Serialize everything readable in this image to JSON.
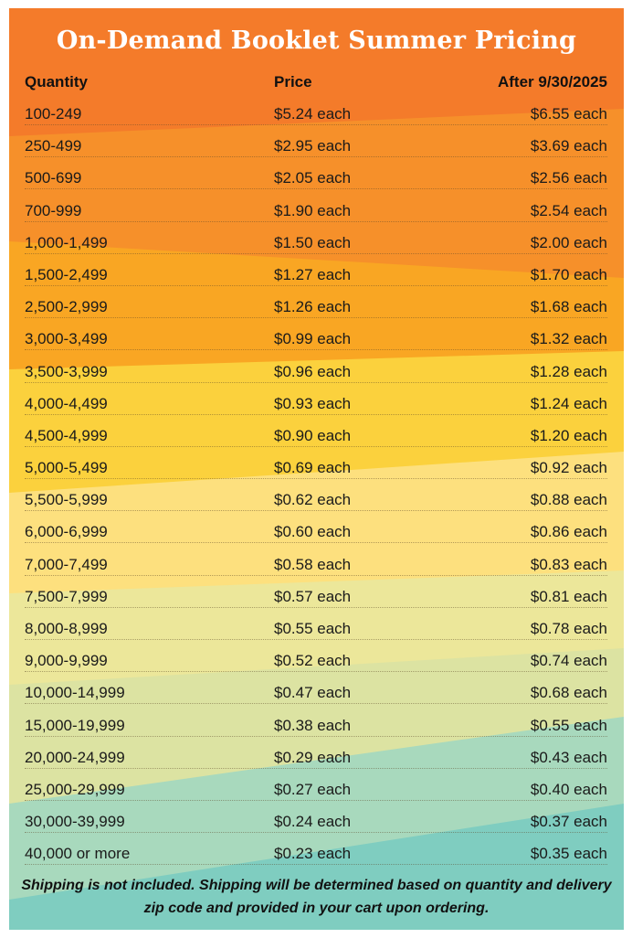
{
  "title": "On-Demand Booklet Summer Pricing",
  "headers": {
    "quantity": "Quantity",
    "price": "Price",
    "after": "After 9/30/2025"
  },
  "rows": [
    {
      "qty": "100-249",
      "price": "$5.24 each",
      "after": "$6.55 each"
    },
    {
      "qty": "250-499",
      "price": "$2.95 each",
      "after": "$3.69 each"
    },
    {
      "qty": "500-699",
      "price": "$2.05 each",
      "after": "$2.56 each"
    },
    {
      "qty": "700-999",
      "price": "$1.90 each",
      "after": "$2.54 each"
    },
    {
      "qty": "1,000-1,499",
      "price": "$1.50 each",
      "after": "$2.00 each"
    },
    {
      "qty": "1,500-2,499",
      "price": "$1.27 each",
      "after": "$1.70 each"
    },
    {
      "qty": "2,500-2,999",
      "price": "$1.26 each",
      "after": "$1.68 each"
    },
    {
      "qty": "3,000-3,499",
      "price": "$0.99 each",
      "after": "$1.32 each"
    },
    {
      "qty": "3,500-3,999",
      "price": "$0.96 each",
      "after": "$1.28 each"
    },
    {
      "qty": "4,000-4,499",
      "price": "$0.93 each",
      "after": "$1.24 each"
    },
    {
      "qty": "4,500-4,999",
      "price": "$0.90 each",
      "after": "$1.20 each"
    },
    {
      "qty": "5,000-5,499",
      "price": "$0.69 each",
      "after": "$0.92 each"
    },
    {
      "qty": "5,500-5,999",
      "price": "$0.62 each",
      "after": "$0.88 each"
    },
    {
      "qty": "6,000-6,999",
      "price": "$0.60 each",
      "after": "$0.86 each"
    },
    {
      "qty": "7,000-7,499",
      "price": "$0.58 each",
      "after": "$0.83 each"
    },
    {
      "qty": "7,500-7,999",
      "price": "$0.57 each",
      "after": "$0.81 each"
    },
    {
      "qty": "8,000-8,999",
      "price": "$0.55 each",
      "after": "$0.78 each"
    },
    {
      "qty": "9,000-9,999",
      "price": "$0.52 each",
      "after": "$0.74 each"
    },
    {
      "qty": "10,000-14,999",
      "price": "$0.47 each",
      "after": "$0.68 each"
    },
    {
      "qty": "15,000-19,999",
      "price": "$0.38 each",
      "after": "$0.55 each"
    },
    {
      "qty": "20,000-24,999",
      "price": "$0.29 each",
      "after": "$0.43 each"
    },
    {
      "qty": "25,000-29,999",
      "price": "$0.27 each",
      "after": "$0.40 each"
    },
    {
      "qty": "30,000-39,999",
      "price": "$0.24 each",
      "after": "$0.37 each"
    },
    {
      "qty": "40,000 or more",
      "price": "$0.23 each",
      "after": "$0.35 each"
    }
  ],
  "note": "Shipping is not included. Shipping will be determined based on quantity and delivery zip code and provided in your cart upon ordering.",
  "colors": {
    "band_1": "#f47b2a",
    "band_2": "#f6902a",
    "band_3": "#f9a623",
    "band_4": "#fbd13d",
    "band_5": "#fde07e",
    "band_6": "#ece79a",
    "band_7": "#dce3a2",
    "band_8": "#a8d9bd",
    "band_9": "#7fcdc0",
    "text": "#1a1a1a",
    "title": "#ffffff"
  }
}
